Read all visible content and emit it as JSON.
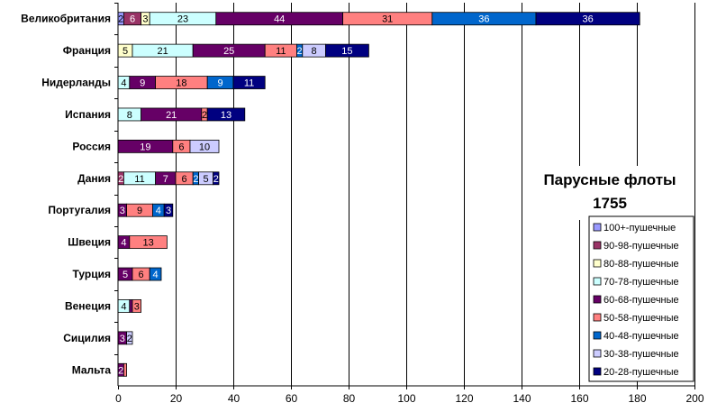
{
  "chart_data": {
    "type": "bar",
    "orientation": "horizontal",
    "stacked": true,
    "title": [
      "Парусные флоты",
      "1755"
    ],
    "xlim": [
      0,
      200
    ],
    "xticks": [
      "0",
      "20",
      "40",
      "60",
      "80",
      "100",
      "120",
      "140",
      "160",
      "180",
      "200"
    ],
    "grid": "vertical",
    "legend_position": "bottom-right",
    "categories": [
      "Великобритания",
      "Франция",
      "Нидерланды",
      "Испания",
      "Россия",
      "Дания",
      "Португалия",
      "Швеция",
      "Турция",
      "Венеция",
      "Сицилия",
      "Мальта"
    ],
    "series": [
      {
        "name": "100+-пушечные",
        "color": "#9999ff",
        "text_color": "#000000",
        "values": [
          2,
          0,
          0,
          0,
          0,
          0,
          0,
          0,
          0,
          0,
          0,
          0
        ]
      },
      {
        "name": "90-98-пушечные",
        "color": "#993366",
        "text_color": "#ffffff",
        "values": [
          6,
          0,
          0,
          0,
          0,
          2,
          0,
          0,
          0,
          0,
          0,
          0
        ]
      },
      {
        "name": "80-88-пушечные",
        "color": "#ffffcc",
        "text_color": "#000000",
        "values": [
          3,
          5,
          0,
          0,
          0,
          0,
          0,
          0,
          0,
          0,
          0,
          0
        ]
      },
      {
        "name": "70-78-пушечные",
        "color": "#ccffff",
        "text_color": "#000000",
        "values": [
          23,
          21,
          4,
          8,
          0,
          11,
          0,
          0,
          0,
          4,
          0,
          0
        ]
      },
      {
        "name": "60-68-пушечные",
        "color": "#660066",
        "text_color": "#ffffff",
        "values": [
          44,
          25,
          9,
          21,
          19,
          7,
          3,
          4,
          5,
          1,
          3,
          2
        ]
      },
      {
        "name": "50-58-пушечные",
        "color": "#ff8080",
        "text_color": "#000000",
        "values": [
          31,
          11,
          18,
          2,
          6,
          6,
          9,
          13,
          6,
          3,
          0,
          1
        ]
      },
      {
        "name": "40-48-пушечные",
        "color": "#0066cc",
        "text_color": "#ffffff",
        "values": [
          36,
          2,
          9,
          0,
          0,
          2,
          4,
          0,
          4,
          0,
          0,
          0
        ]
      },
      {
        "name": "30-38-пушечные",
        "color": "#ccccff",
        "text_color": "#000000",
        "values": [
          0,
          8,
          0,
          0,
          10,
          5,
          0,
          0,
          0,
          0,
          2,
          0
        ]
      },
      {
        "name": "20-28-пушечные",
        "color": "#000080",
        "text_color": "#ffffff",
        "values": [
          36,
          15,
          11,
          13,
          0,
          2,
          3,
          0,
          0,
          0,
          0,
          0
        ]
      }
    ],
    "segment_labels": [
      [
        "2",
        "6",
        "3",
        "23",
        "44",
        "31",
        "36",
        "",
        "36"
      ],
      [
        "",
        "",
        "5",
        "21",
        "25",
        "11",
        "2",
        "8",
        "15"
      ],
      [
        "",
        "",
        "",
        "4",
        "9",
        "18",
        "9",
        "",
        "11"
      ],
      [
        "",
        "",
        "",
        "8",
        "21",
        "2",
        "",
        "",
        "13"
      ],
      [
        "",
        "",
        "",
        "",
        "19",
        "6",
        "",
        "10",
        ""
      ],
      [
        "",
        "2",
        "",
        "11",
        "7",
        "6",
        "2",
        "5",
        "2"
      ],
      [
        "",
        "",
        "",
        "",
        "3",
        "9",
        "4",
        "",
        "3"
      ],
      [
        "",
        "",
        "",
        "",
        "4",
        "13",
        "",
        "",
        ""
      ],
      [
        "",
        "",
        "",
        "",
        "5",
        "6",
        "4",
        "",
        ""
      ],
      [
        "",
        "",
        "",
        "4",
        "",
        "3",
        "",
        "",
        ""
      ],
      [
        "",
        "",
        "",
        "",
        "3",
        "",
        "",
        "2",
        ""
      ],
      [
        "",
        "",
        "",
        "",
        "2",
        "",
        "",
        "",
        ""
      ]
    ]
  }
}
